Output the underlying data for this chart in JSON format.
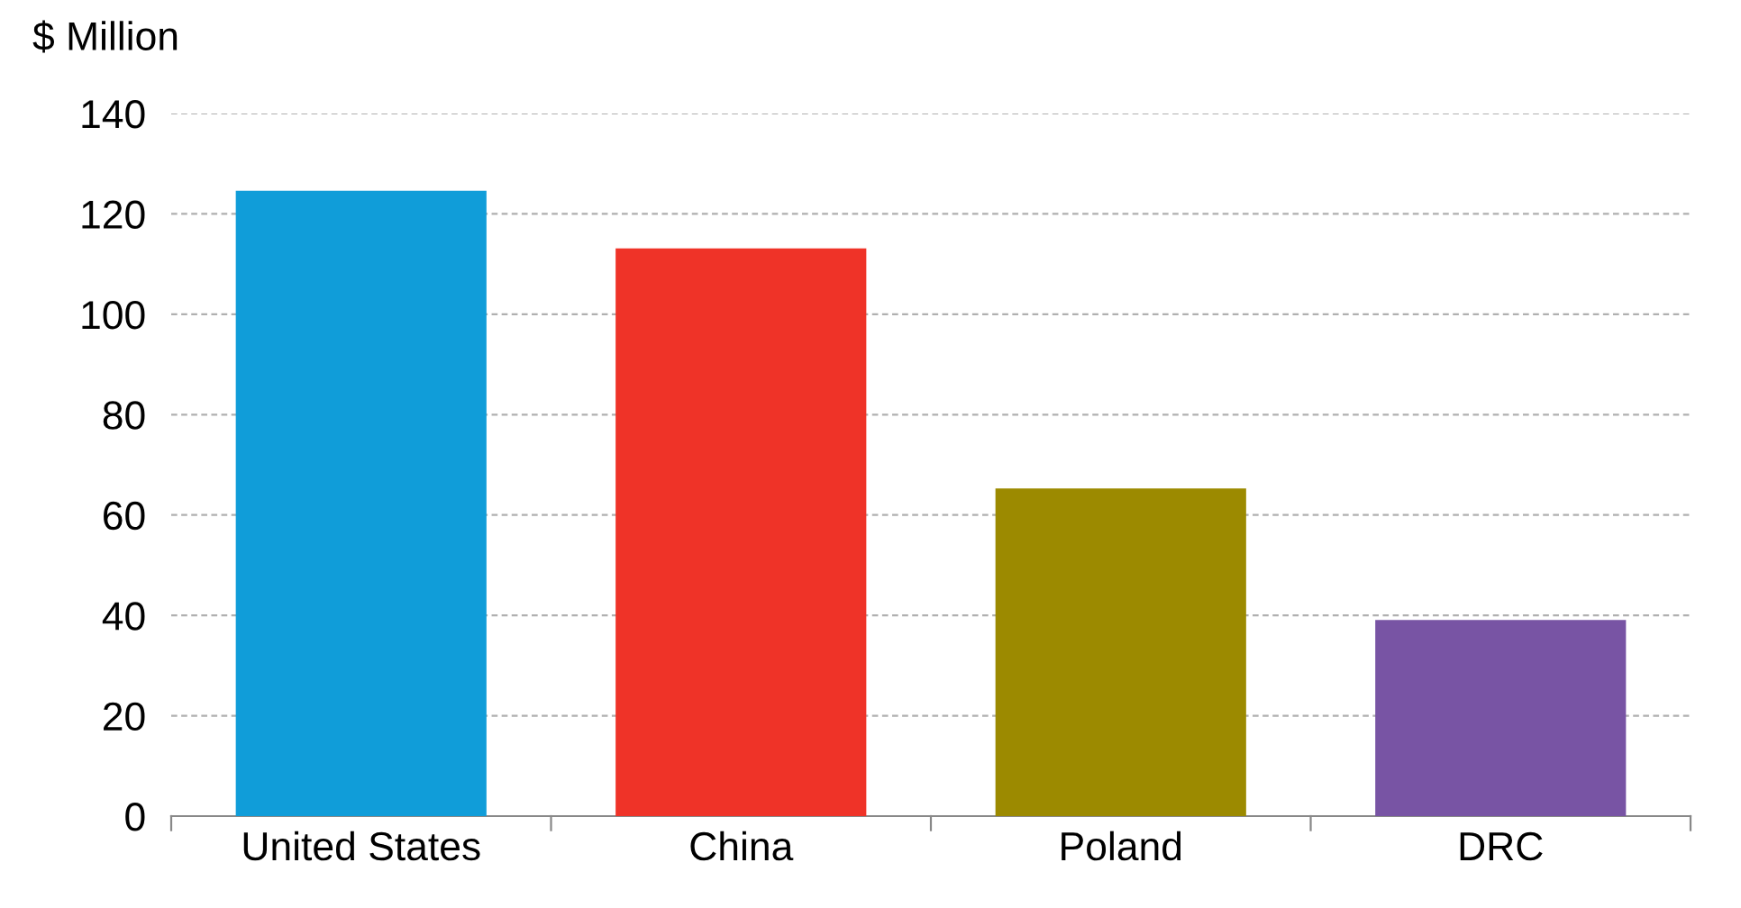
{
  "chart_data": {
    "type": "bar",
    "ylabel": "$ Million",
    "categories": [
      "United States",
      "China",
      "Poland",
      "DRC"
    ],
    "values": [
      124.6,
      113.1,
      65.3,
      39.1
    ],
    "colors": [
      "#109dd9",
      "#ef3328",
      "#9c8a00",
      "#7854a4"
    ],
    "ylim": [
      0,
      140
    ],
    "yticks": [
      0,
      20,
      40,
      60,
      80,
      100,
      120,
      140
    ],
    "grid": "y",
    "legend": false
  }
}
